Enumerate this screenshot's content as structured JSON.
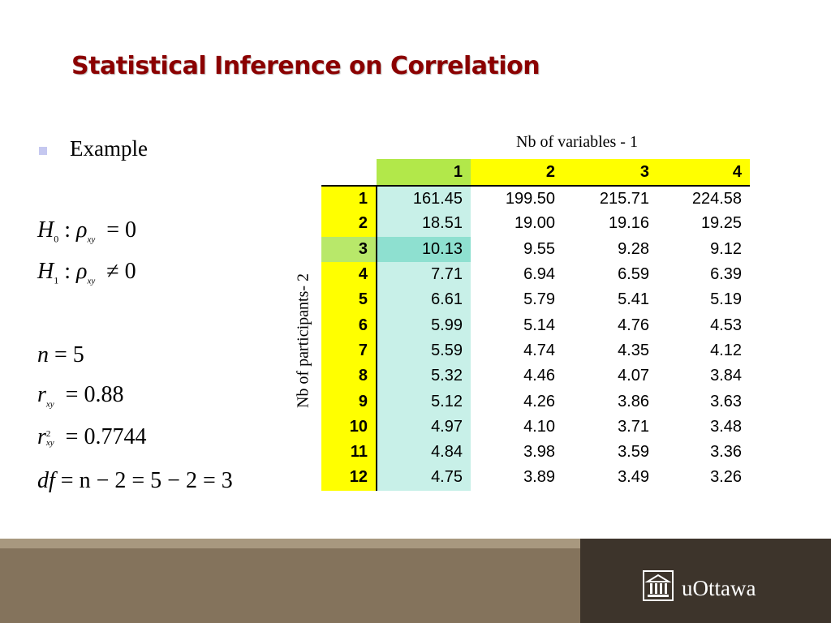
{
  "slide": {
    "title": "Statistical Inference on Correlation"
  },
  "bullet": {
    "text": "Example"
  },
  "hypotheses": {
    "h0": {
      "symbol": "H",
      "subscript": "0",
      "op": ":",
      "param": "ρ",
      "param_sub": "xy",
      "relation": "=",
      "value": "0"
    },
    "h1": {
      "symbol": "H",
      "subscript": "1",
      "op": ":",
      "param": "ρ",
      "param_sub": "xy",
      "relation": "≠",
      "value": "0"
    }
  },
  "stats": {
    "n": {
      "symbol": "n",
      "relation": "=",
      "value": "5"
    },
    "r": {
      "symbol": "r",
      "sub": "xy",
      "relation": "=",
      "value": "0.88"
    },
    "r2": {
      "symbol": "r",
      "sub": "xy",
      "sup": "2",
      "relation": "=",
      "value": "0.7744"
    },
    "df": {
      "symbol": "df",
      "expression": "= n − 2 = 5 − 2 = 3"
    }
  },
  "table": {
    "col_axis_label": "Nb of variables - 1",
    "row_axis_label": "Nb of participants- 2",
    "columns": [
      "1",
      "2",
      "3",
      "4"
    ],
    "rows": [
      {
        "label": "1",
        "values": [
          "161.45",
          "199.50",
          "215.71",
          "224.58"
        ]
      },
      {
        "label": "2",
        "values": [
          "18.51",
          "19.00",
          "19.16",
          "19.25"
        ]
      },
      {
        "label": "3",
        "values": [
          "10.13",
          "9.55",
          "9.28",
          "9.12"
        ]
      },
      {
        "label": "4",
        "values": [
          "7.71",
          "6.94",
          "6.59",
          "6.39"
        ]
      },
      {
        "label": "5",
        "values": [
          "6.61",
          "5.79",
          "5.41",
          "5.19"
        ]
      },
      {
        "label": "6",
        "values": [
          "5.99",
          "5.14",
          "4.76",
          "4.53"
        ]
      },
      {
        "label": "7",
        "values": [
          "5.59",
          "4.74",
          "4.35",
          "4.12"
        ]
      },
      {
        "label": "8",
        "values": [
          "5.32",
          "4.46",
          "4.07",
          "3.84"
        ]
      },
      {
        "label": "9",
        "values": [
          "5.12",
          "4.26",
          "3.86",
          "3.63"
        ]
      },
      {
        "label": "10",
        "values": [
          "4.97",
          "4.10",
          "3.71",
          "3.48"
        ]
      },
      {
        "label": "11",
        "values": [
          "4.84",
          "3.98",
          "3.59",
          "3.36"
        ]
      },
      {
        "label": "12",
        "values": [
          "4.75",
          "3.89",
          "3.49",
          "3.26"
        ]
      }
    ],
    "highlight": {
      "column": "1",
      "row": "3"
    }
  },
  "footer": {
    "logo_icon": "university-building-icon",
    "logo_text": "uOttawa"
  },
  "colors": {
    "title": "#8b0000",
    "header_yellow": "#ffff00",
    "highlight_green": "#b2e84a",
    "highlight_teal": "#8ee0d0",
    "footer_brown": "#84735c",
    "footer_dark": "#3d342b"
  }
}
